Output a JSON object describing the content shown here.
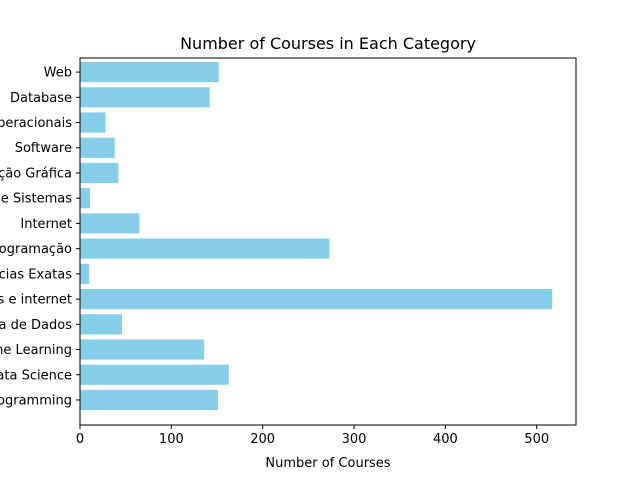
{
  "chart_data": {
    "type": "bar",
    "orientation": "horizontal",
    "title": "Number of Courses in Each Category",
    "xlabel": "Number of Courses",
    "ylabel": "",
    "categories": [
      "Web",
      "Database",
      "Sistemas Operacionais",
      "Software",
      "Computação Gráfica",
      "Análise e Projeto de Sistemas",
      "Internet",
      "Programação",
      "Ciências Exatas",
      "Redes e internet",
      "Ciência de Dados",
      "Machine Learning",
      "Data Science",
      "Programming"
    ],
    "values": [
      152,
      142,
      28,
      38,
      42,
      11,
      65,
      273,
      10,
      517,
      46,
      136,
      163,
      151
    ],
    "xlim": [
      0,
      543
    ],
    "xticks": [
      0,
      100,
      200,
      300,
      400,
      500
    ],
    "bar_color": "#87ceeb",
    "grid": false
  }
}
